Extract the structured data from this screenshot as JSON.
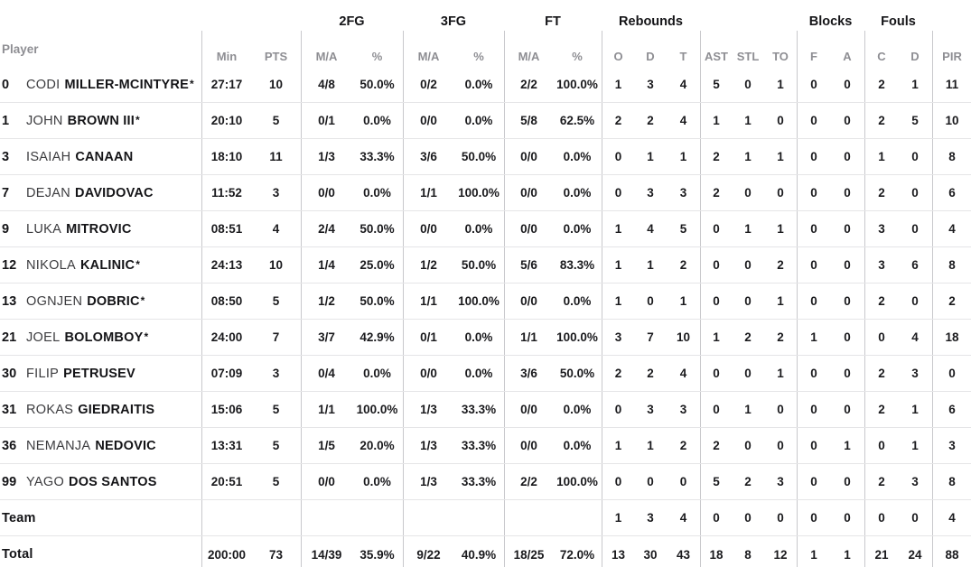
{
  "table": {
    "group_headers": {
      "fg2": "2FG",
      "fg3": "3FG",
      "ft": "FT",
      "rebounds": "Rebounds",
      "blocks": "Blocks",
      "fouls": "Fouls"
    },
    "col_headers": {
      "player": "Player",
      "min": "Min",
      "pts": "PTS",
      "ma": "M/A",
      "pct": "%",
      "o": "O",
      "d": "D",
      "t": "T",
      "ast": "AST",
      "stl": "STL",
      "to": "TO",
      "f": "F",
      "a": "A",
      "c": "C",
      "pir": "PIR"
    },
    "rows": [
      {
        "type": "player",
        "num": "0",
        "first": "CODI",
        "last": "MILLER-MCINTYRE",
        "star": "*",
        "min": "27:17",
        "pts": "10",
        "fg2_ma": "4/8",
        "fg2_pct": "50.0%",
        "fg3_ma": "0/2",
        "fg3_pct": "0.0%",
        "ft_ma": "2/2",
        "ft_pct": "100.0%",
        "o": "1",
        "d": "3",
        "t": "4",
        "ast": "5",
        "stl": "0",
        "to": "1",
        "bf": "0",
        "ba": "0",
        "fc": "2",
        "fd": "1",
        "pir": "11"
      },
      {
        "type": "player",
        "num": "1",
        "first": "JOHN",
        "last": "BROWN III",
        "star": "*",
        "min": "20:10",
        "pts": "5",
        "fg2_ma": "0/1",
        "fg2_pct": "0.0%",
        "fg3_ma": "0/0",
        "fg3_pct": "0.0%",
        "ft_ma": "5/8",
        "ft_pct": "62.5%",
        "o": "2",
        "d": "2",
        "t": "4",
        "ast": "1",
        "stl": "1",
        "to": "0",
        "bf": "0",
        "ba": "0",
        "fc": "2",
        "fd": "5",
        "pir": "10"
      },
      {
        "type": "player",
        "num": "3",
        "first": "ISAIAH",
        "last": "CANAAN",
        "star": "",
        "min": "18:10",
        "pts": "11",
        "fg2_ma": "1/3",
        "fg2_pct": "33.3%",
        "fg3_ma": "3/6",
        "fg3_pct": "50.0%",
        "ft_ma": "0/0",
        "ft_pct": "0.0%",
        "o": "0",
        "d": "1",
        "t": "1",
        "ast": "2",
        "stl": "1",
        "to": "1",
        "bf": "0",
        "ba": "0",
        "fc": "1",
        "fd": "0",
        "pir": "8"
      },
      {
        "type": "player",
        "num": "7",
        "first": "DEJAN",
        "last": "DAVIDOVAC",
        "star": "",
        "min": "11:52",
        "pts": "3",
        "fg2_ma": "0/0",
        "fg2_pct": "0.0%",
        "fg3_ma": "1/1",
        "fg3_pct": "100.0%",
        "ft_ma": "0/0",
        "ft_pct": "0.0%",
        "o": "0",
        "d": "3",
        "t": "3",
        "ast": "2",
        "stl": "0",
        "to": "0",
        "bf": "0",
        "ba": "0",
        "fc": "2",
        "fd": "0",
        "pir": "6"
      },
      {
        "type": "player",
        "num": "9",
        "first": "LUKA",
        "last": "MITROVIC",
        "star": "",
        "min": "08:51",
        "pts": "4",
        "fg2_ma": "2/4",
        "fg2_pct": "50.0%",
        "fg3_ma": "0/0",
        "fg3_pct": "0.0%",
        "ft_ma": "0/0",
        "ft_pct": "0.0%",
        "o": "1",
        "d": "4",
        "t": "5",
        "ast": "0",
        "stl": "1",
        "to": "1",
        "bf": "0",
        "ba": "0",
        "fc": "3",
        "fd": "0",
        "pir": "4"
      },
      {
        "type": "player",
        "num": "12",
        "first": "NIKOLA",
        "last": "KALINIC",
        "star": "*",
        "min": "24:13",
        "pts": "10",
        "fg2_ma": "1/4",
        "fg2_pct": "25.0%",
        "fg3_ma": "1/2",
        "fg3_pct": "50.0%",
        "ft_ma": "5/6",
        "ft_pct": "83.3%",
        "o": "1",
        "d": "1",
        "t": "2",
        "ast": "0",
        "stl": "0",
        "to": "2",
        "bf": "0",
        "ba": "0",
        "fc": "3",
        "fd": "6",
        "pir": "8"
      },
      {
        "type": "player",
        "num": "13",
        "first": "OGNJEN",
        "last": "DOBRIC",
        "star": "*",
        "min": "08:50",
        "pts": "5",
        "fg2_ma": "1/2",
        "fg2_pct": "50.0%",
        "fg3_ma": "1/1",
        "fg3_pct": "100.0%",
        "ft_ma": "0/0",
        "ft_pct": "0.0%",
        "o": "1",
        "d": "0",
        "t": "1",
        "ast": "0",
        "stl": "0",
        "to": "1",
        "bf": "0",
        "ba": "0",
        "fc": "2",
        "fd": "0",
        "pir": "2"
      },
      {
        "type": "player",
        "num": "21",
        "first": "JOEL",
        "last": "BOLOMBOY",
        "star": "*",
        "min": "24:00",
        "pts": "7",
        "fg2_ma": "3/7",
        "fg2_pct": "42.9%",
        "fg3_ma": "0/1",
        "fg3_pct": "0.0%",
        "ft_ma": "1/1",
        "ft_pct": "100.0%",
        "o": "3",
        "d": "7",
        "t": "10",
        "ast": "1",
        "stl": "2",
        "to": "2",
        "bf": "1",
        "ba": "0",
        "fc": "0",
        "fd": "4",
        "pir": "18"
      },
      {
        "type": "player",
        "num": "30",
        "first": "FILIP",
        "last": "PETRUSEV",
        "star": "",
        "min": "07:09",
        "pts": "3",
        "fg2_ma": "0/4",
        "fg2_pct": "0.0%",
        "fg3_ma": "0/0",
        "fg3_pct": "0.0%",
        "ft_ma": "3/6",
        "ft_pct": "50.0%",
        "o": "2",
        "d": "2",
        "t": "4",
        "ast": "0",
        "stl": "0",
        "to": "1",
        "bf": "0",
        "ba": "0",
        "fc": "2",
        "fd": "3",
        "pir": "0"
      },
      {
        "type": "player",
        "num": "31",
        "first": "ROKAS",
        "last": "GIEDRAITIS",
        "star": "",
        "min": "15:06",
        "pts": "5",
        "fg2_ma": "1/1",
        "fg2_pct": "100.0%",
        "fg3_ma": "1/3",
        "fg3_pct": "33.3%",
        "ft_ma": "0/0",
        "ft_pct": "0.0%",
        "o": "0",
        "d": "3",
        "t": "3",
        "ast": "0",
        "stl": "1",
        "to": "0",
        "bf": "0",
        "ba": "0",
        "fc": "2",
        "fd": "1",
        "pir": "6"
      },
      {
        "type": "player",
        "num": "36",
        "first": "NEMANJA",
        "last": "NEDOVIC",
        "star": "",
        "min": "13:31",
        "pts": "5",
        "fg2_ma": "1/5",
        "fg2_pct": "20.0%",
        "fg3_ma": "1/3",
        "fg3_pct": "33.3%",
        "ft_ma": "0/0",
        "ft_pct": "0.0%",
        "o": "1",
        "d": "1",
        "t": "2",
        "ast": "2",
        "stl": "0",
        "to": "0",
        "bf": "0",
        "ba": "1",
        "fc": "0",
        "fd": "1",
        "pir": "3"
      },
      {
        "type": "player",
        "num": "99",
        "first": "YAGO",
        "last": "DOS SANTOS",
        "star": "",
        "min": "20:51",
        "pts": "5",
        "fg2_ma": "0/0",
        "fg2_pct": "0.0%",
        "fg3_ma": "1/3",
        "fg3_pct": "33.3%",
        "ft_ma": "2/2",
        "ft_pct": "100.0%",
        "o": "0",
        "d": "0",
        "t": "0",
        "ast": "5",
        "stl": "2",
        "to": "3",
        "bf": "0",
        "ba": "0",
        "fc": "2",
        "fd": "3",
        "pir": "8"
      },
      {
        "type": "team",
        "num": "",
        "first": "",
        "last": "Team",
        "star": "",
        "min": "",
        "pts": "",
        "fg2_ma": "",
        "fg2_pct": "",
        "fg3_ma": "",
        "fg3_pct": "",
        "ft_ma": "",
        "ft_pct": "",
        "o": "1",
        "d": "3",
        "t": "4",
        "ast": "0",
        "stl": "0",
        "to": "0",
        "bf": "0",
        "ba": "0",
        "fc": "0",
        "fd": "0",
        "pir": "4"
      },
      {
        "type": "total",
        "num": "",
        "first": "",
        "last": "Total",
        "star": "",
        "min": "200:00",
        "pts": "73",
        "fg2_ma": "14/39",
        "fg2_pct": "35.9%",
        "fg3_ma": "9/22",
        "fg3_pct": "40.9%",
        "ft_ma": "18/25",
        "ft_pct": "72.0%",
        "o": "13",
        "d": "30",
        "t": "43",
        "ast": "18",
        "stl": "8",
        "to": "12",
        "bf": "1",
        "ba": "1",
        "fc": "21",
        "fd": "24",
        "pir": "88"
      }
    ]
  },
  "colors": {
    "text": "#1a1a1d",
    "muted_header": "#8e8e93",
    "divider": "#c8c8cc",
    "row_line": "#e5e5e7"
  },
  "chart_data": {
    "type": "table",
    "columns": [
      "Player",
      "Min",
      "PTS",
      "2FG M/A",
      "2FG %",
      "3FG M/A",
      "3FG %",
      "FT M/A",
      "FT %",
      "Reb O",
      "Reb D",
      "Reb T",
      "AST",
      "STL",
      "TO",
      "Blocks F",
      "Blocks A",
      "Fouls C",
      "Fouls D",
      "PIR"
    ],
    "rows": [
      [
        "0 CODI MILLER-MCINTYRE*",
        "27:17",
        "10",
        "4/8",
        "50.0%",
        "0/2",
        "0.0%",
        "2/2",
        "100.0%",
        "1",
        "3",
        "4",
        "5",
        "0",
        "1",
        "0",
        "0",
        "2",
        "1",
        "11"
      ],
      [
        "1 JOHN BROWN III*",
        "20:10",
        "5",
        "0/1",
        "0.0%",
        "0/0",
        "0.0%",
        "5/8",
        "62.5%",
        "2",
        "2",
        "4",
        "1",
        "1",
        "0",
        "0",
        "0",
        "2",
        "5",
        "10"
      ],
      [
        "3 ISAIAH CANAAN",
        "18:10",
        "11",
        "1/3",
        "33.3%",
        "3/6",
        "50.0%",
        "0/0",
        "0.0%",
        "0",
        "1",
        "1",
        "2",
        "1",
        "1",
        "0",
        "0",
        "1",
        "0",
        "8"
      ],
      [
        "7 DEJAN DAVIDOVAC",
        "11:52",
        "3",
        "0/0",
        "0.0%",
        "1/1",
        "100.0%",
        "0/0",
        "0.0%",
        "0",
        "3",
        "3",
        "2",
        "0",
        "0",
        "0",
        "0",
        "2",
        "0",
        "6"
      ],
      [
        "9 LUKA MITROVIC",
        "08:51",
        "4",
        "2/4",
        "50.0%",
        "0/0",
        "0.0%",
        "0/0",
        "0.0%",
        "1",
        "4",
        "5",
        "0",
        "1",
        "1",
        "0",
        "0",
        "3",
        "0",
        "4"
      ],
      [
        "12 NIKOLA KALINIC*",
        "24:13",
        "10",
        "1/4",
        "25.0%",
        "1/2",
        "50.0%",
        "5/6",
        "83.3%",
        "1",
        "1",
        "2",
        "0",
        "0",
        "2",
        "0",
        "0",
        "3",
        "6",
        "8"
      ],
      [
        "13 OGNJEN DOBRIC*",
        "08:50",
        "5",
        "1/2",
        "50.0%",
        "1/1",
        "100.0%",
        "0/0",
        "0.0%",
        "1",
        "0",
        "1",
        "0",
        "0",
        "1",
        "0",
        "0",
        "2",
        "0",
        "2"
      ],
      [
        "21 JOEL BOLOMBOY*",
        "24:00",
        "7",
        "3/7",
        "42.9%",
        "0/1",
        "0.0%",
        "1/1",
        "100.0%",
        "3",
        "7",
        "10",
        "1",
        "2",
        "2",
        "1",
        "0",
        "0",
        "4",
        "18"
      ],
      [
        "30 FILIP PETRUSEV",
        "07:09",
        "3",
        "0/4",
        "0.0%",
        "0/0",
        "0.0%",
        "3/6",
        "50.0%",
        "2",
        "2",
        "4",
        "0",
        "0",
        "1",
        "0",
        "0",
        "2",
        "3",
        "0"
      ],
      [
        "31 ROKAS GIEDRAITIS",
        "15:06",
        "5",
        "1/1",
        "100.0%",
        "1/3",
        "33.3%",
        "0/0",
        "0.0%",
        "0",
        "3",
        "3",
        "0",
        "1",
        "0",
        "0",
        "0",
        "2",
        "1",
        "6"
      ],
      [
        "36 NEMANJA NEDOVIC",
        "13:31",
        "5",
        "1/5",
        "20.0%",
        "1/3",
        "33.3%",
        "0/0",
        "0.0%",
        "1",
        "1",
        "2",
        "2",
        "0",
        "0",
        "0",
        "1",
        "0",
        "1",
        "3"
      ],
      [
        "99 YAGO DOS SANTOS",
        "20:51",
        "5",
        "0/0",
        "0.0%",
        "1/3",
        "33.3%",
        "2/2",
        "100.0%",
        "0",
        "0",
        "0",
        "5",
        "2",
        "3",
        "0",
        "0",
        "2",
        "3",
        "8"
      ],
      [
        "Team",
        "",
        "",
        "",
        "",
        "",
        "",
        "",
        "",
        "1",
        "3",
        "4",
        "0",
        "0",
        "0",
        "0",
        "0",
        "0",
        "0",
        "4"
      ],
      [
        "Total",
        "200:00",
        "73",
        "14/39",
        "35.9%",
        "9/22",
        "40.9%",
        "18/25",
        "72.0%",
        "13",
        "30",
        "43",
        "18",
        "8",
        "12",
        "1",
        "1",
        "21",
        "24",
        "88"
      ]
    ]
  }
}
